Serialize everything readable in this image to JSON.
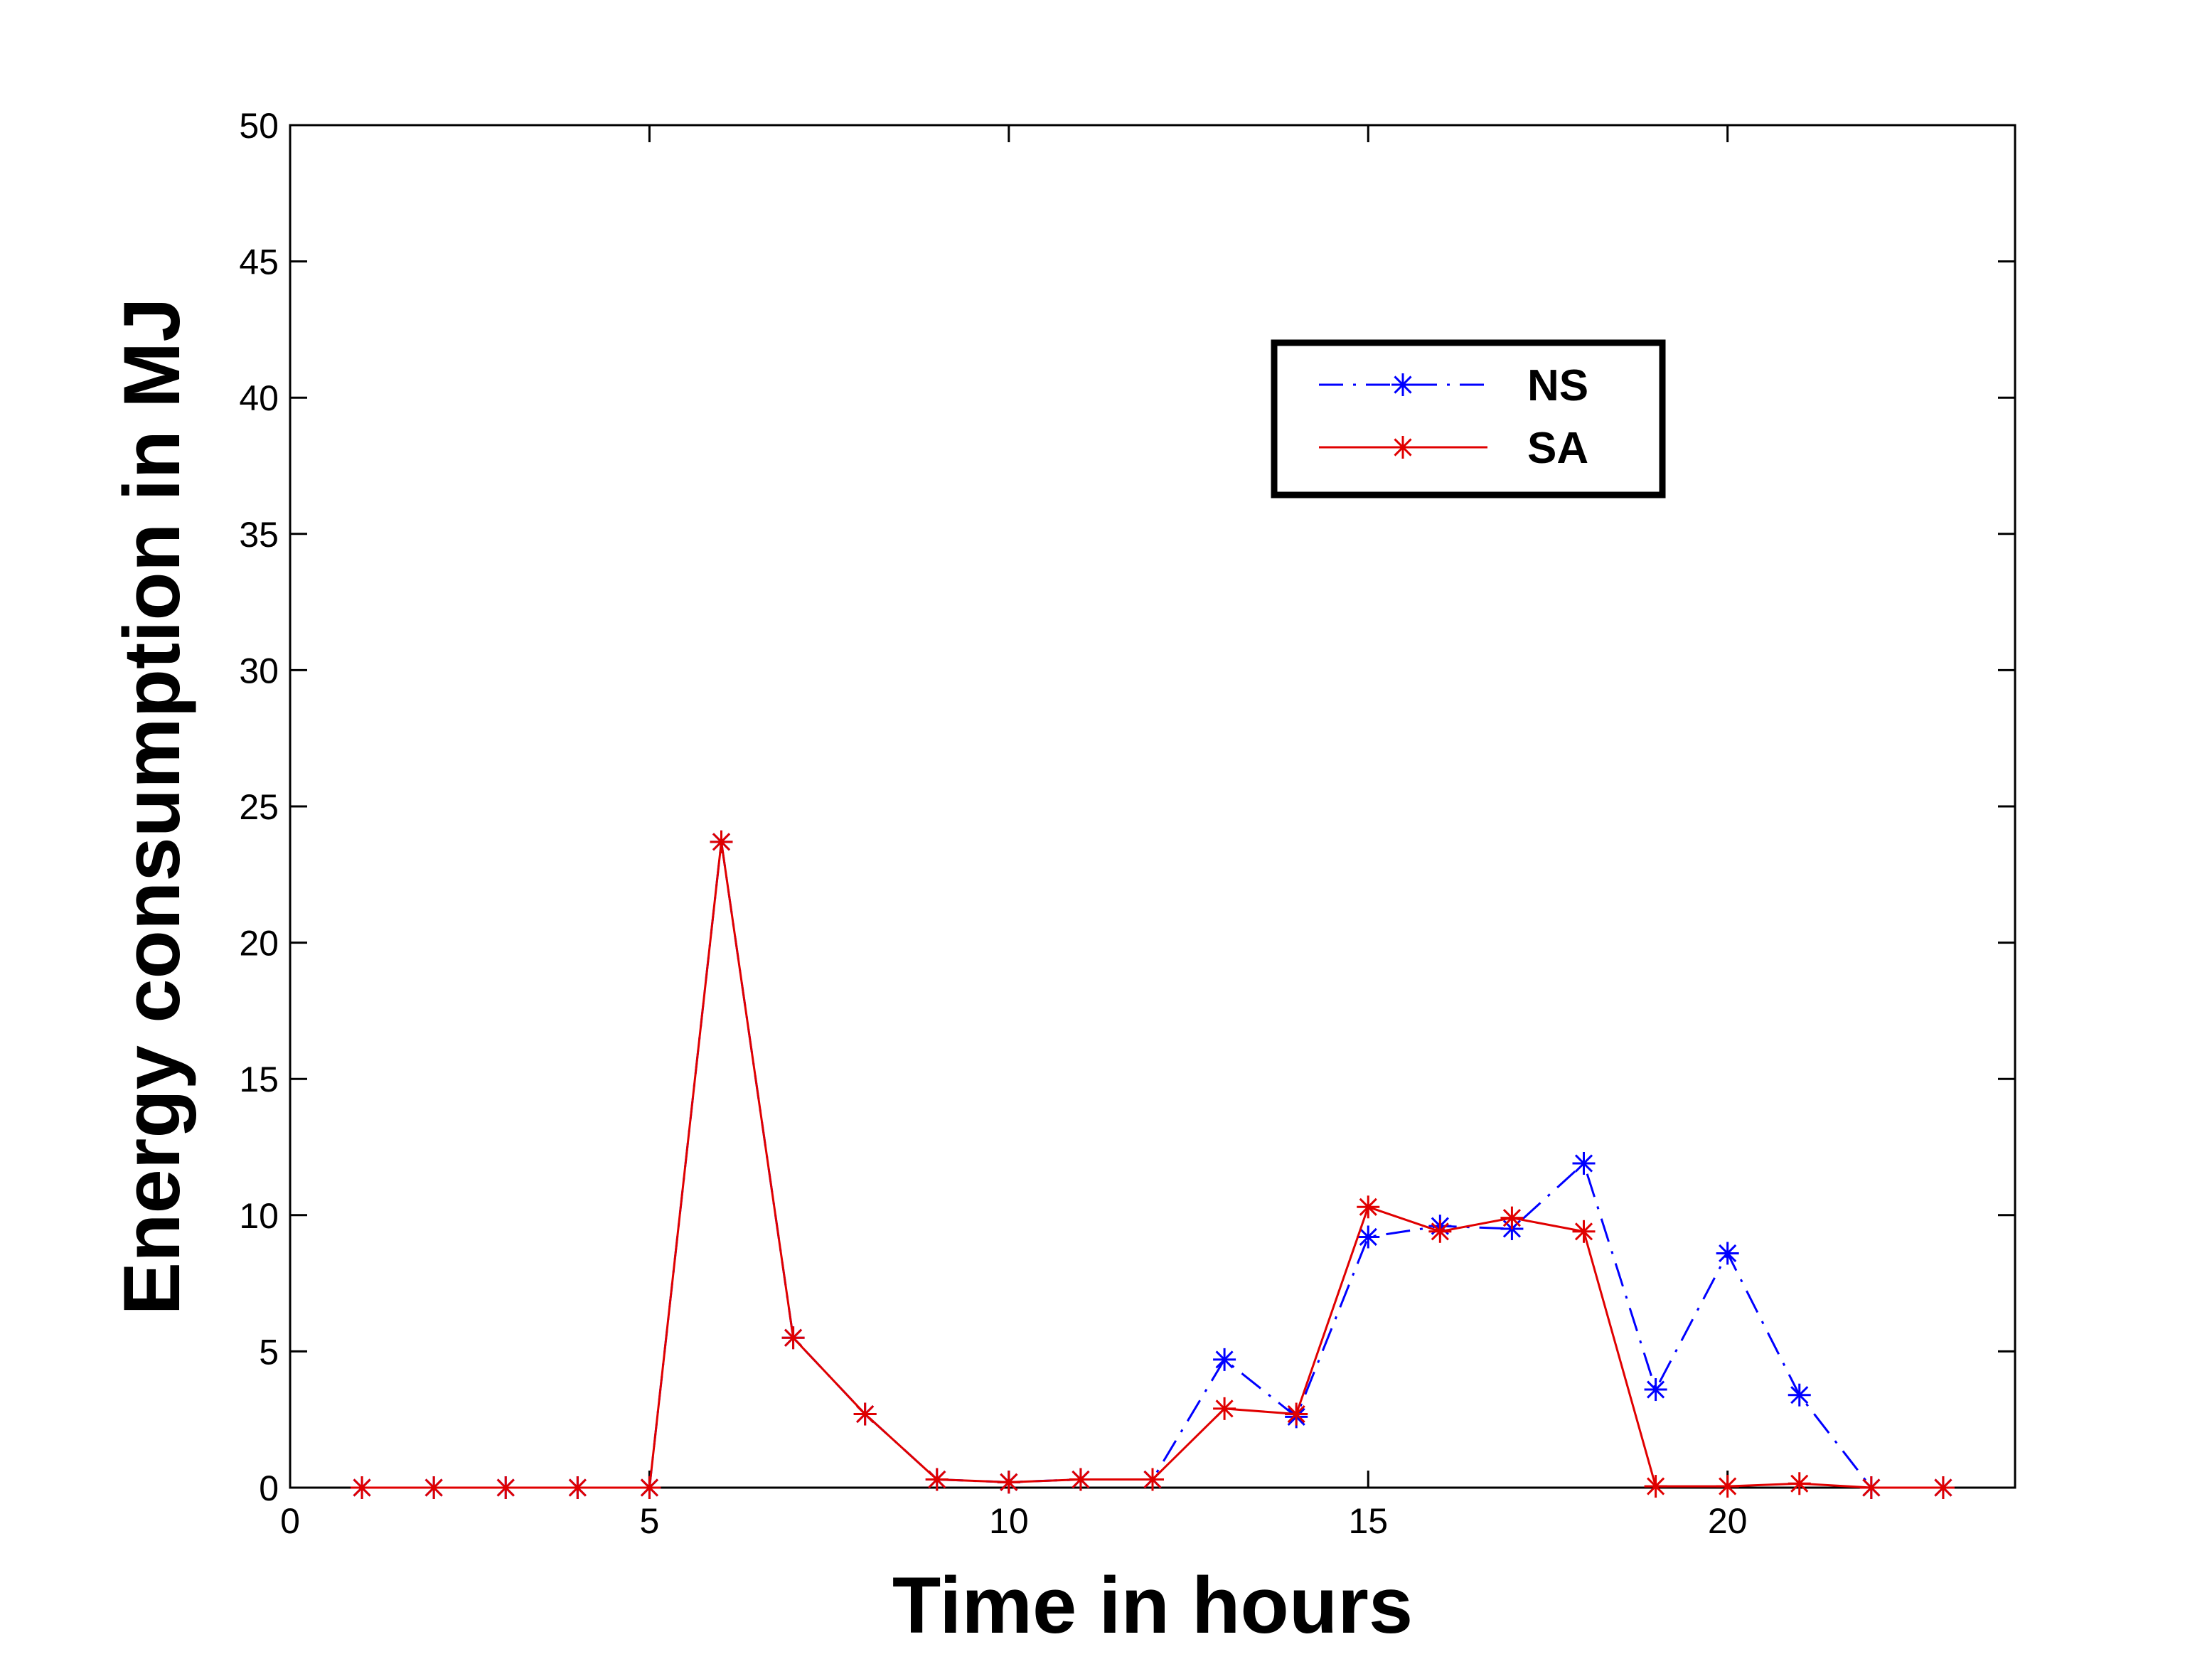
{
  "chart_data": {
    "type": "line",
    "title": "",
    "xlabel": "Time in hours",
    "ylabel": "Energy consumption in MJ",
    "xlim": [
      0,
      24
    ],
    "ylim": [
      0,
      50
    ],
    "xticks": [
      0,
      5,
      10,
      15,
      20
    ],
    "yticks": [
      0,
      5,
      10,
      15,
      20,
      25,
      30,
      35,
      40,
      45,
      50
    ],
    "grid": false,
    "legend_position": "top-right",
    "x": [
      1,
      2,
      3,
      4,
      5,
      6,
      7,
      8,
      9,
      10,
      11,
      12,
      13,
      14,
      15,
      16,
      17,
      18,
      19,
      20,
      21,
      22,
      23
    ],
    "series": [
      {
        "name": "NS",
        "color": "#0000ff",
        "line_style": "dash-dot",
        "marker": "asterisk",
        "values": [
          0,
          0,
          0,
          0,
          0,
          23.7,
          5.5,
          2.7,
          0.3,
          0.2,
          0.3,
          0.3,
          4.7,
          2.6,
          9.2,
          9.6,
          9.5,
          11.9,
          3.6,
          8.6,
          3.4,
          0,
          0
        ]
      },
      {
        "name": "SA",
        "color": "#e00000",
        "line_style": "solid",
        "marker": "asterisk",
        "values": [
          0,
          0,
          0,
          0,
          0,
          23.7,
          5.5,
          2.7,
          0.3,
          0.2,
          0.3,
          0.3,
          2.9,
          2.7,
          10.3,
          9.4,
          9.9,
          9.4,
          0.05,
          0.05,
          0.15,
          0,
          0
        ]
      }
    ]
  }
}
